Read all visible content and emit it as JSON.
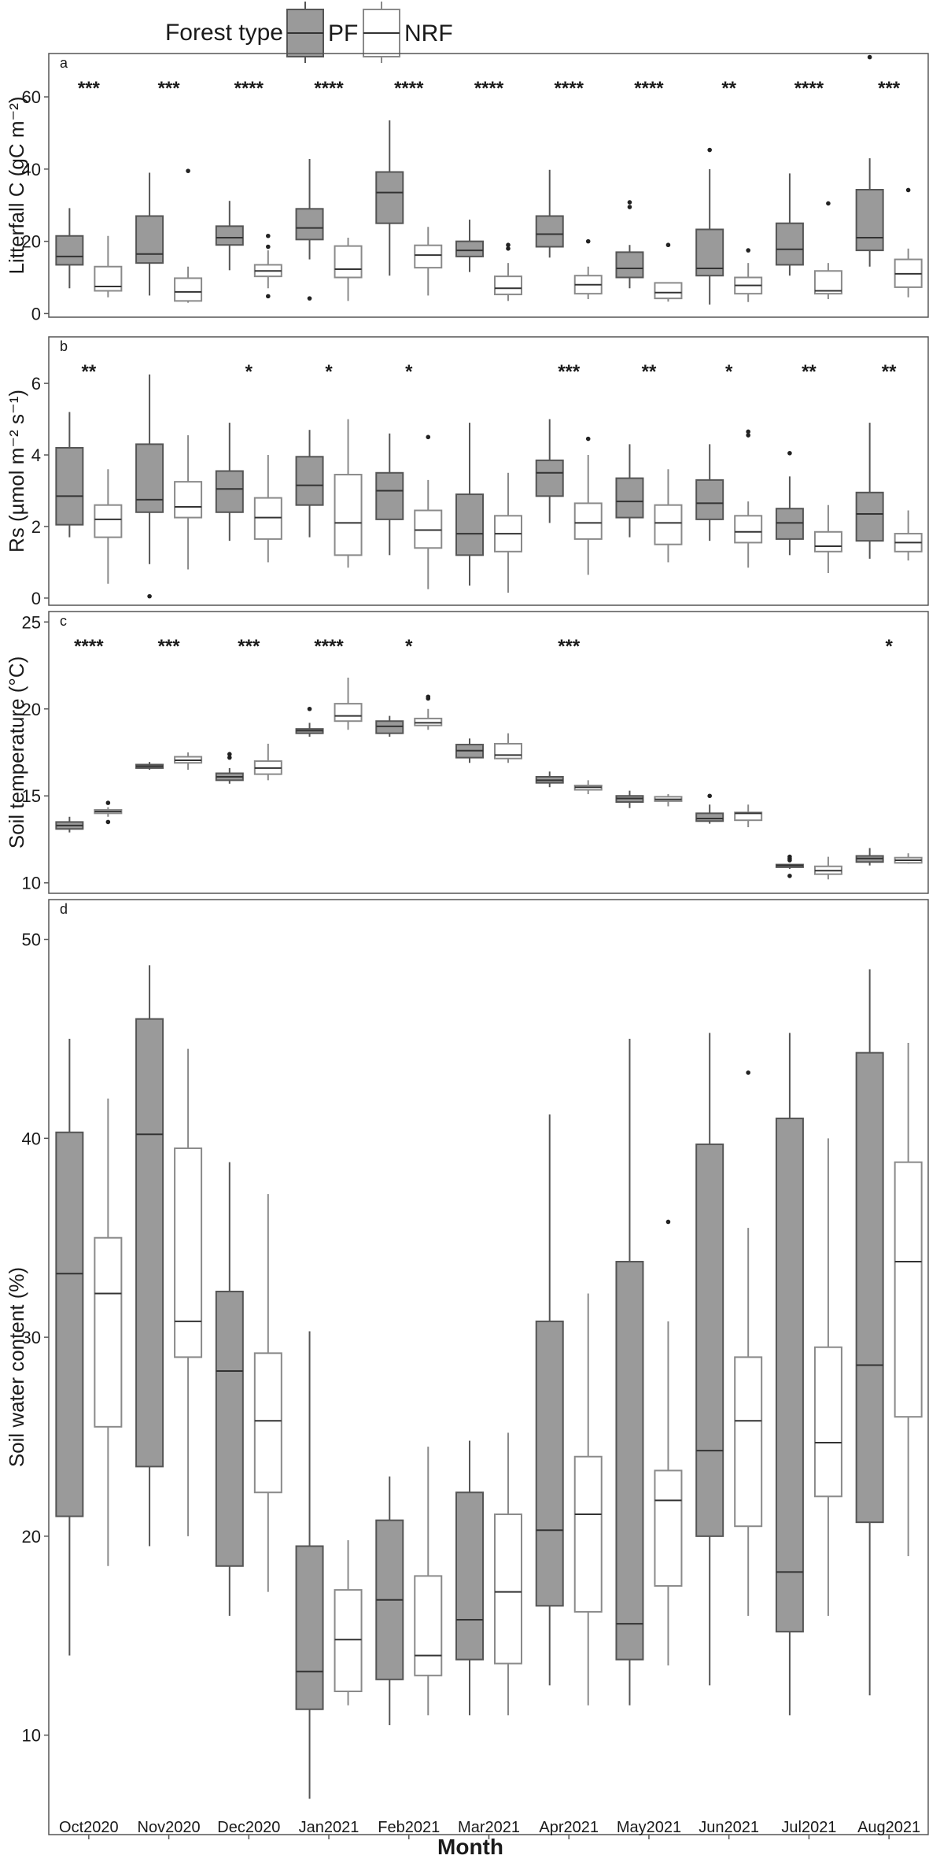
{
  "legend": {
    "title": "Forest type",
    "items": [
      {
        "label": "PF",
        "fill": "#9a9a9a",
        "stroke": "#555555"
      },
      {
        "label": "NRF",
        "fill": "#ffffff",
        "stroke": "#8a8a8a"
      }
    ]
  },
  "chart_data": {
    "type": "box",
    "xlabel": "Month",
    "categories": [
      "Oct2020",
      "Nov2020",
      "Dec2020",
      "Jan2021",
      "Feb2021",
      "Mar2021",
      "Apr2021",
      "May2021",
      "Jun2021",
      "Jul2021",
      "Aug2021"
    ],
    "series_names": [
      "PF",
      "NRF"
    ],
    "panels": [
      {
        "letter": "a",
        "ylabel": "Litterfall C (gC m⁻²)",
        "ylim": [
          -1,
          72
        ],
        "yticks": [
          0,
          20,
          40,
          60
        ],
        "significance": [
          "***",
          "***",
          "****",
          "****",
          "****",
          "****",
          "****",
          "****",
          "**",
          "****",
          "***"
        ],
        "PF": [
          {
            "low": 7,
            "q1": 13.5,
            "med": 15.8,
            "q3": 21.5,
            "high": 29.2,
            "out": []
          },
          {
            "low": 5,
            "q1": 14,
            "med": 16.5,
            "q3": 27,
            "high": 39,
            "out": []
          },
          {
            "low": 12,
            "q1": 19,
            "med": 21,
            "q3": 24.2,
            "high": 31.2,
            "out": []
          },
          {
            "low": 15,
            "q1": 20.5,
            "med": 23.7,
            "q3": 29,
            "high": 42.8,
            "out": [
              4.2
            ]
          },
          {
            "low": 10.5,
            "q1": 25,
            "med": 33.5,
            "q3": 39.2,
            "high": 53.5,
            "out": []
          },
          {
            "low": 11.5,
            "q1": 15.8,
            "med": 17.5,
            "q3": 20,
            "high": 26,
            "out": []
          },
          {
            "low": 15.5,
            "q1": 18.5,
            "med": 22,
            "q3": 27,
            "high": 39.8,
            "out": []
          },
          {
            "low": 7,
            "q1": 10,
            "med": 12.5,
            "q3": 17,
            "high": 19,
            "out": [
              29.5,
              30.8
            ]
          },
          {
            "low": 2.5,
            "q1": 10.5,
            "med": 12.5,
            "q3": 23.3,
            "high": 40,
            "out": [
              45.3
            ]
          },
          {
            "low": 10.5,
            "q1": 13.5,
            "med": 17.8,
            "q3": 25,
            "high": 38.8,
            "out": []
          },
          {
            "low": 13,
            "q1": 17.5,
            "med": 21,
            "q3": 34.3,
            "high": 43,
            "out": [
              71
            ]
          }
        ],
        "NRF": [
          {
            "low": 4.5,
            "q1": 6.3,
            "med": 7.5,
            "q3": 13,
            "high": 21.5,
            "out": []
          },
          {
            "low": 3,
            "q1": 3.5,
            "med": 6,
            "q3": 9.8,
            "high": 13,
            "out": [
              39.5
            ]
          },
          {
            "low": 7,
            "q1": 10.3,
            "med": 11.8,
            "q3": 13.5,
            "high": 17.5,
            "out": [
              4.8,
              18.5,
              21.5
            ]
          },
          {
            "low": 3.5,
            "q1": 10,
            "med": 12.3,
            "q3": 18.7,
            "high": 21,
            "out": []
          },
          {
            "low": 5,
            "q1": 12.7,
            "med": 16.2,
            "q3": 18.9,
            "high": 24,
            "out": []
          },
          {
            "low": 3.5,
            "q1": 5.3,
            "med": 7,
            "q3": 10.3,
            "high": 14,
            "out": [
              18,
              19
            ]
          },
          {
            "low": 4,
            "q1": 5.5,
            "med": 8,
            "q3": 10.5,
            "high": 13,
            "out": [
              20
            ]
          },
          {
            "low": 3.3,
            "q1": 4.2,
            "med": 5.8,
            "q3": 8.5,
            "high": 8.5,
            "out": [
              19
            ]
          },
          {
            "low": 3.2,
            "q1": 5.5,
            "med": 7.8,
            "q3": 10,
            "high": 14,
            "out": [
              17.5
            ]
          },
          {
            "low": 4,
            "q1": 5.5,
            "med": 6.3,
            "q3": 11.8,
            "high": 14,
            "out": [
              30.5
            ]
          },
          {
            "low": 4.5,
            "q1": 7.3,
            "med": 11,
            "q3": 15,
            "high": 18,
            "out": [
              34.2
            ]
          }
        ]
      },
      {
        "letter": "b",
        "ylabel": "Rs (µmol m⁻² s⁻¹)",
        "ylim": [
          -0.2,
          7.3
        ],
        "yticks": [
          0,
          2,
          4,
          6
        ],
        "significance": [
          "**",
          "",
          "*",
          "*",
          "*",
          "",
          "***",
          "**",
          "*",
          "**",
          "**"
        ],
        "PF": [
          {
            "low": 1.7,
            "q1": 2.05,
            "med": 2.85,
            "q3": 4.2,
            "high": 5.2,
            "out": []
          },
          {
            "low": 0.95,
            "q1": 2.4,
            "med": 2.75,
            "q3": 4.3,
            "high": 6.25,
            "out": [
              0.05
            ]
          },
          {
            "low": 1.6,
            "q1": 2.4,
            "med": 3.05,
            "q3": 3.55,
            "high": 4.9,
            "out": []
          },
          {
            "low": 1.7,
            "q1": 2.6,
            "med": 3.15,
            "q3": 3.95,
            "high": 4.7,
            "out": []
          },
          {
            "low": 1.2,
            "q1": 2.2,
            "med": 3.0,
            "q3": 3.5,
            "high": 4.6,
            "out": []
          },
          {
            "low": 0.35,
            "q1": 1.2,
            "med": 1.8,
            "q3": 2.9,
            "high": 4.9,
            "out": []
          },
          {
            "low": 2.1,
            "q1": 2.85,
            "med": 3.5,
            "q3": 3.85,
            "high": 5.0,
            "out": []
          },
          {
            "low": 1.7,
            "q1": 2.25,
            "med": 2.7,
            "q3": 3.35,
            "high": 4.3,
            "out": []
          },
          {
            "low": 1.6,
            "q1": 2.2,
            "med": 2.65,
            "q3": 3.3,
            "high": 4.3,
            "out": []
          },
          {
            "low": 1.2,
            "q1": 1.65,
            "med": 2.1,
            "q3": 2.5,
            "high": 3.4,
            "out": [
              4.05
            ]
          },
          {
            "low": 1.1,
            "q1": 1.6,
            "med": 2.35,
            "q3": 2.95,
            "high": 4.9,
            "out": []
          }
        ],
        "NRF": [
          {
            "low": 0.4,
            "q1": 1.7,
            "med": 2.2,
            "q3": 2.6,
            "high": 3.6,
            "out": []
          },
          {
            "low": 0.8,
            "q1": 2.25,
            "med": 2.55,
            "q3": 3.25,
            "high": 4.55,
            "out": []
          },
          {
            "low": 1.0,
            "q1": 1.65,
            "med": 2.25,
            "q3": 2.8,
            "high": 4.0,
            "out": []
          },
          {
            "low": 0.85,
            "q1": 1.2,
            "med": 2.1,
            "q3": 3.45,
            "high": 5.0,
            "out": []
          },
          {
            "low": 0.25,
            "q1": 1.4,
            "med": 1.9,
            "q3": 2.45,
            "high": 3.3,
            "out": [
              4.5
            ]
          },
          {
            "low": 0.15,
            "q1": 1.3,
            "med": 1.8,
            "q3": 2.3,
            "high": 3.5,
            "out": []
          },
          {
            "low": 0.65,
            "q1": 1.65,
            "med": 2.1,
            "q3": 2.65,
            "high": 4.0,
            "out": [
              4.45
            ]
          },
          {
            "low": 1.0,
            "q1": 1.5,
            "med": 2.1,
            "q3": 2.6,
            "high": 3.6,
            "out": []
          },
          {
            "low": 0.85,
            "q1": 1.55,
            "med": 1.85,
            "q3": 2.3,
            "high": 2.7,
            "out": [
              4.55,
              4.65
            ]
          },
          {
            "low": 0.7,
            "q1": 1.3,
            "med": 1.45,
            "q3": 1.85,
            "high": 2.6,
            "out": []
          },
          {
            "low": 1.05,
            "q1": 1.3,
            "med": 1.55,
            "q3": 1.8,
            "high": 2.45,
            "out": []
          }
        ]
      },
      {
        "letter": "c",
        "ylabel": "Soil temperature (°C)",
        "ylim": [
          9.4,
          25.6
        ],
        "yticks": [
          10,
          15,
          20,
          25
        ],
        "significance": [
          "****",
          "***",
          "***",
          "****",
          "*",
          "",
          "***",
          "",
          "",
          "",
          "*"
        ],
        "PF": [
          {
            "low": 12.9,
            "q1": 13.1,
            "med": 13.3,
            "q3": 13.5,
            "high": 13.8,
            "out": []
          },
          {
            "low": 16.5,
            "q1": 16.6,
            "med": 16.7,
            "q3": 16.8,
            "high": 16.95,
            "out": []
          },
          {
            "low": 15.7,
            "q1": 15.9,
            "med": 16.1,
            "q3": 16.3,
            "high": 16.6,
            "out": [
              17.2,
              17.4
            ]
          },
          {
            "low": 18.4,
            "q1": 18.6,
            "med": 18.75,
            "q3": 18.85,
            "high": 19.2,
            "out": [
              20.0
            ]
          },
          {
            "low": 18.4,
            "q1": 18.6,
            "med": 19.0,
            "q3": 19.3,
            "high": 19.6,
            "out": []
          },
          {
            "low": 16.9,
            "q1": 17.2,
            "med": 17.6,
            "q3": 17.95,
            "high": 18.3,
            "out": []
          },
          {
            "low": 15.5,
            "q1": 15.75,
            "med": 15.9,
            "q3": 16.1,
            "high": 16.4,
            "out": []
          },
          {
            "low": 14.3,
            "q1": 14.65,
            "med": 14.85,
            "q3": 15.0,
            "high": 15.3,
            "out": []
          },
          {
            "low": 13.4,
            "q1": 13.55,
            "med": 13.7,
            "q3": 14.0,
            "high": 14.5,
            "out": [
              15.0
            ]
          },
          {
            "low": 10.8,
            "q1": 10.9,
            "med": 11.0,
            "q3": 11.05,
            "high": 11.1,
            "out": [
              10.4,
              11.3,
              11.4,
              11.5
            ]
          },
          {
            "low": 11.0,
            "q1": 11.2,
            "med": 11.4,
            "q3": 11.55,
            "high": 12.0,
            "out": []
          }
        ],
        "NRF": [
          {
            "low": 13.8,
            "q1": 14.0,
            "med": 14.1,
            "q3": 14.2,
            "high": 14.35,
            "out": [
              13.5,
              14.6
            ]
          },
          {
            "low": 16.5,
            "q1": 16.9,
            "med": 17.05,
            "q3": 17.25,
            "high": 17.5,
            "out": []
          },
          {
            "low": 15.9,
            "q1": 16.25,
            "med": 16.6,
            "q3": 17.0,
            "high": 18.0,
            "out": []
          },
          {
            "low": 18.8,
            "q1": 19.3,
            "med": 19.6,
            "q3": 20.3,
            "high": 21.8,
            "out": []
          },
          {
            "low": 18.8,
            "q1": 19.05,
            "med": 19.2,
            "q3": 19.45,
            "high": 20.0,
            "out": [
              20.6,
              20.7
            ]
          },
          {
            "low": 16.9,
            "q1": 17.15,
            "med": 17.35,
            "q3": 18.0,
            "high": 18.6,
            "out": []
          },
          {
            "low": 15.1,
            "q1": 15.35,
            "med": 15.5,
            "q3": 15.6,
            "high": 15.9,
            "out": []
          },
          {
            "low": 14.4,
            "q1": 14.7,
            "med": 14.8,
            "q3": 14.95,
            "high": 15.1,
            "out": []
          },
          {
            "low": 13.2,
            "q1": 13.6,
            "med": 14.0,
            "q3": 14.05,
            "high": 14.5,
            "out": []
          },
          {
            "low": 10.2,
            "q1": 10.5,
            "med": 10.7,
            "q3": 10.95,
            "high": 11.5,
            "out": []
          },
          {
            "low": 11.1,
            "q1": 11.15,
            "med": 11.3,
            "q3": 11.45,
            "high": 11.7,
            "out": []
          }
        ]
      },
      {
        "letter": "d",
        "ylabel": "Soil water content (%)",
        "ylim": [
          5,
          52
        ],
        "yticks": [
          10,
          20,
          30,
          40,
          50
        ],
        "significance": [
          "",
          "",
          "",
          "",
          "",
          "",
          "",
          "",
          "",
          "",
          ""
        ],
        "PF": [
          {
            "low": 14,
            "q1": 21,
            "med": 33.2,
            "q3": 40.3,
            "high": 45,
            "out": []
          },
          {
            "low": 19.5,
            "q1": 23.5,
            "med": 40.2,
            "q3": 46,
            "high": 48.7,
            "out": []
          },
          {
            "low": 16,
            "q1": 18.5,
            "med": 28.3,
            "q3": 32.3,
            "high": 38.8,
            "out": []
          },
          {
            "low": 6.8,
            "q1": 11.3,
            "med": 13.2,
            "q3": 19.5,
            "high": 30.3,
            "out": []
          },
          {
            "low": 10.5,
            "q1": 12.8,
            "med": 16.8,
            "q3": 20.8,
            "high": 23,
            "out": []
          },
          {
            "low": 11,
            "q1": 13.8,
            "med": 15.8,
            "q3": 22.2,
            "high": 24.8,
            "out": []
          },
          {
            "low": 12.5,
            "q1": 16.5,
            "med": 20.3,
            "q3": 30.8,
            "high": 41.2,
            "out": []
          },
          {
            "low": 11.5,
            "q1": 13.8,
            "med": 15.6,
            "q3": 33.8,
            "high": 45,
            "out": []
          },
          {
            "low": 12.5,
            "q1": 20,
            "med": 24.3,
            "q3": 39.7,
            "high": 45.3,
            "out": []
          },
          {
            "low": 11,
            "q1": 15.2,
            "med": 18.2,
            "q3": 41,
            "high": 45.3,
            "out": []
          },
          {
            "low": 12,
            "q1": 20.7,
            "med": 28.6,
            "q3": 44.3,
            "high": 48.5,
            "out": []
          }
        ],
        "NRF": [
          {
            "low": 18.5,
            "q1": 25.5,
            "med": 32.2,
            "q3": 35,
            "high": 42,
            "out": []
          },
          {
            "low": 20,
            "q1": 29,
            "med": 30.8,
            "q3": 39.5,
            "high": 44.5,
            "out": []
          },
          {
            "low": 17.2,
            "q1": 22.2,
            "med": 25.8,
            "q3": 29.2,
            "high": 37.2,
            "out": []
          },
          {
            "low": 11.5,
            "q1": 12.2,
            "med": 14.8,
            "q3": 17.3,
            "high": 19.8,
            "out": []
          },
          {
            "low": 11,
            "q1": 13,
            "med": 14,
            "q3": 18,
            "high": 24.5,
            "out": []
          },
          {
            "low": 11,
            "q1": 13.6,
            "med": 17.2,
            "q3": 21.1,
            "high": 25.2,
            "out": []
          },
          {
            "low": 11.5,
            "q1": 16.2,
            "med": 21.1,
            "q3": 24,
            "high": 32.2,
            "out": []
          },
          {
            "low": 13.5,
            "q1": 17.5,
            "med": 21.8,
            "q3": 23.3,
            "high": 30.8,
            "out": [
              35.8
            ]
          },
          {
            "low": 16,
            "q1": 20.5,
            "med": 25.8,
            "q3": 29,
            "high": 35.5,
            "out": [
              43.3
            ]
          },
          {
            "low": 16,
            "q1": 22,
            "med": 24.7,
            "q3": 29.5,
            "high": 40,
            "out": []
          },
          {
            "low": 19,
            "q1": 26,
            "med": 33.8,
            "q3": 38.8,
            "high": 44.8,
            "out": []
          }
        ]
      }
    ]
  }
}
